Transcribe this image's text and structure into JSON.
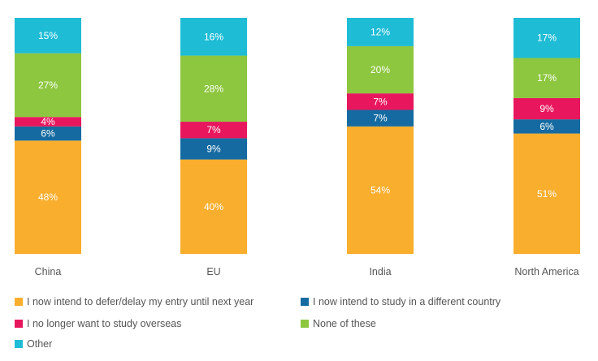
{
  "chart_data": {
    "type": "bar",
    "stacked": true,
    "normalized": true,
    "categories": [
      "China",
      "EU",
      "India",
      "North America"
    ],
    "series": [
      {
        "name": "I now intend to defer/delay my entry until next year",
        "color": "#F9AE2D",
        "values": [
          48,
          40,
          54,
          51
        ]
      },
      {
        "name": "I now intend to study in a different country",
        "color": "#156BA1",
        "values": [
          6,
          9,
          7,
          6
        ]
      },
      {
        "name": "I no longer want to study overseas",
        "color": "#E8175D",
        "values": [
          4,
          7,
          7,
          9
        ]
      },
      {
        "name": "None of these",
        "color": "#8DC63F",
        "values": [
          27,
          28,
          20,
          17
        ]
      },
      {
        "name": "Other",
        "color": "#1FBCD6",
        "values": [
          15,
          16,
          12,
          17
        ]
      }
    ],
    "value_suffix": "%",
    "title": "",
    "xlabel": "",
    "ylabel": "",
    "grid": false,
    "legend_position": "bottom"
  }
}
